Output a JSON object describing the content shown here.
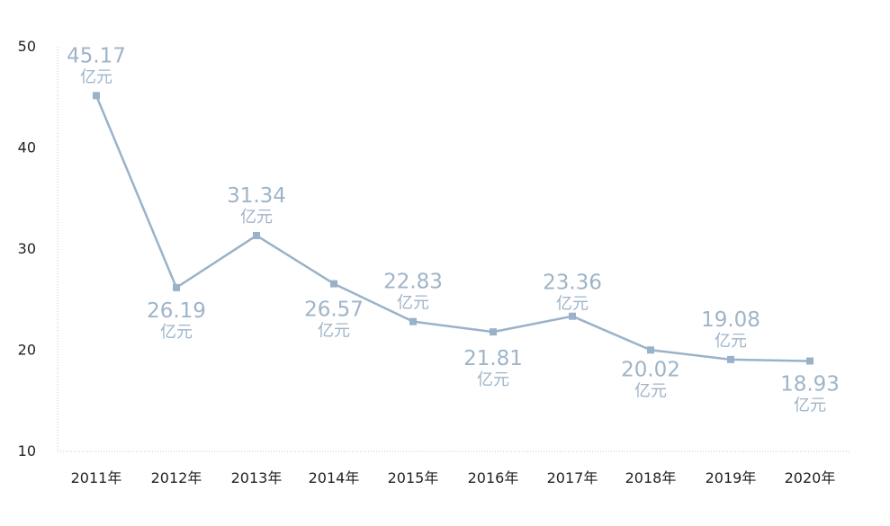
{
  "chart_data": {
    "type": "line",
    "categories": [
      "2011年",
      "2012年",
      "2013年",
      "2014年",
      "2015年",
      "2016年",
      "2017年",
      "2018年",
      "2019年",
      "2020年"
    ],
    "series": [
      {
        "values": [
          45.17,
          26.19,
          31.34,
          26.57,
          22.83,
          21.81,
          23.36,
          20.02,
          19.08,
          18.93
        ],
        "data_labels": [
          "45.17",
          "26.19",
          "31.34",
          "26.57",
          "22.83",
          "21.81",
          "23.36",
          "20.02",
          "19.08",
          "18.93"
        ],
        "color": "#9ab2c9"
      }
    ],
    "value_unit": "亿元",
    "yticks": [
      "10",
      "20",
      "30",
      "40",
      "50"
    ],
    "ylim": [
      10,
      50
    ],
    "grid": false,
    "legend": "none",
    "axis_color": "#c8c8c8",
    "label_color": "#9fb4c8"
  }
}
